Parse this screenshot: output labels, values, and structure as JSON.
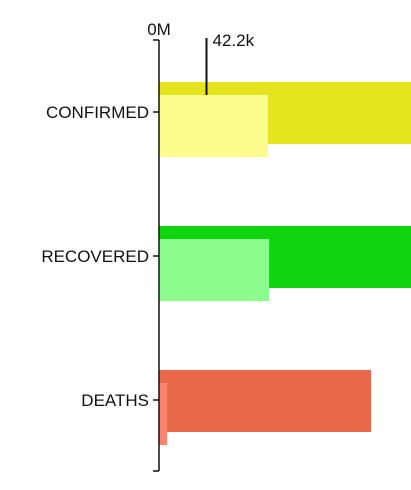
{
  "chart_data": {
    "type": "bar",
    "orientation": "horizontal",
    "categories": [
      "CONFIRMED",
      "RECOVERED",
      "DEATHS"
    ],
    "x_axis": {
      "tick_labels": [
        "0M"
      ],
      "position": "top"
    },
    "series": [
      {
        "role": "outer-bar",
        "values": [
          85000,
          85000,
          70500
        ],
        "colors": [
          "#e5e51f",
          "#10d410",
          "#e8694a"
        ]
      },
      {
        "role": "inner-bar",
        "values": [
          36200,
          36600,
          2700
        ],
        "colors": [
          "#fcfc8c",
          "#8cfc8c",
          "#fc846c"
        ]
      }
    ],
    "annotation": {
      "label": "42.2k",
      "value": 15800
    },
    "grid": false,
    "legend": "none"
  }
}
